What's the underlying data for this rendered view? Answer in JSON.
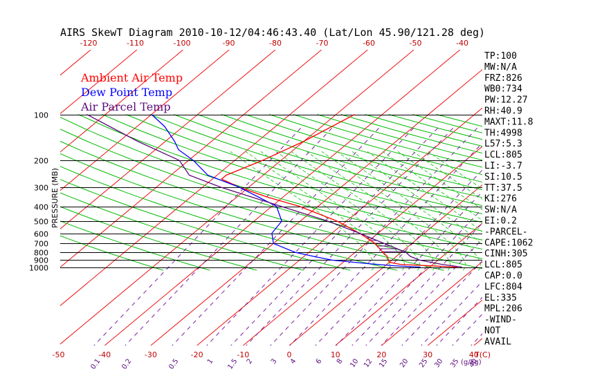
{
  "chart_data": {
    "type": "line",
    "title": "AIRS SkewT Diagram 2010-10-12/04:46:43.40 (Lat/Lon 45.90/121.28 deg)",
    "ylabel": "PRESSURE (MB)",
    "xlabel": "T(C)",
    "mixing_ratio_label": "(g/kg)",
    "pressure_ticks": [
      100,
      200,
      300,
      400,
      500,
      600,
      700,
      800,
      900,
      1000
    ],
    "top_temp_ticks": [
      -120,
      -110,
      -100,
      -90,
      -80,
      -70,
      -60,
      -50,
      -40
    ],
    "bottom_temp_ticks": [
      -50,
      -40,
      -30,
      -20,
      -10,
      0,
      10,
      20,
      30,
      40
    ],
    "mixing_ratio_ticks": [
      "0.1",
      "0.2",
      "0.5",
      "1",
      "1.5",
      "2",
      "3",
      "4",
      "6",
      "8",
      "10",
      "12",
      "15",
      "20",
      "25",
      "30",
      "35",
      "40"
    ],
    "legend": [
      {
        "name": "Ambient Air Temp",
        "color": "#ff0000"
      },
      {
        "name": "Dew Point Temp",
        "color": "#0000ff"
      },
      {
        "name": "Air Parcel Temp",
        "color": "#5a0a7a"
      }
    ],
    "series": [
      {
        "name": "Ambient Air Temp",
        "color": "#ff0000",
        "points": [
          [
            1000,
            16
          ],
          [
            960,
            3
          ],
          [
            930,
            0
          ],
          [
            850,
            -2
          ],
          [
            800,
            -4
          ],
          [
            700,
            -8
          ],
          [
            600,
            -14
          ],
          [
            500,
            -22
          ],
          [
            400,
            -34
          ],
          [
            350,
            -43
          ],
          [
            300,
            -52
          ],
          [
            265,
            -58
          ],
          [
            250,
            -58
          ],
          [
            200,
            -54
          ],
          [
            150,
            -50
          ],
          [
            100,
            -46
          ]
        ]
      },
      {
        "name": "Dew Point Temp",
        "color": "#0000ff",
        "points": [
          [
            1000,
            8
          ],
          [
            980,
            2
          ],
          [
            950,
            -4
          ],
          [
            900,
            -13
          ],
          [
            850,
            -18
          ],
          [
            800,
            -23
          ],
          [
            700,
            -30
          ],
          [
            600,
            -33
          ],
          [
            500,
            -34
          ],
          [
            400,
            -39
          ],
          [
            300,
            -52
          ],
          [
            250,
            -62
          ],
          [
            200,
            -69
          ],
          [
            170,
            -75
          ],
          [
            150,
            -78
          ],
          [
            120,
            -84
          ],
          [
            100,
            -90
          ]
        ]
      },
      {
        "name": "Air Parcel Temp",
        "color": "#5a0a7a",
        "points": [
          [
            1000,
            17
          ],
          [
            960,
            12
          ],
          [
            900,
            6
          ],
          [
            850,
            3
          ],
          [
            800,
            1
          ],
          [
            700,
            -6
          ],
          [
            600,
            -14
          ],
          [
            500,
            -24
          ],
          [
            400,
            -38
          ],
          [
            300,
            -56
          ],
          [
            250,
            -66
          ],
          [
            200,
            -72
          ],
          [
            150,
            -86
          ],
          [
            100,
            -104
          ]
        ]
      }
    ],
    "cape_shading_range_mb": [
      340,
      805
    ],
    "indices": [
      "TP:100",
      "MW:N/A",
      "FRZ:826",
      "WB0:734",
      "PW:12.27",
      "RH:40.9",
      "MAXT:11.8",
      "TH:4998",
      "L57:5.3",
      "LCL:805",
      "LI:-3.7",
      "SI:10.5",
      "TT:37.5",
      "KI:276",
      "SW:N/A",
      "EI:0.2",
      "-PARCEL-",
      "CAPE:1062",
      "CINH:305",
      "LCL:805",
      "CAP:0.0",
      "LFC:804",
      "EL:335",
      "MPL:206",
      "-WIND-",
      "NOT",
      "AVAIL"
    ]
  },
  "colors": {
    "temperature": "#ff0000",
    "dewpoint": "#0000ff",
    "parcel": "#5a0a7a",
    "isotherm": "#ee1111",
    "dry_adiabat": "#00bb00",
    "moist_adiabat": "#33cc33",
    "mixing_ratio": "#7a1fa0",
    "isobar": "#000000"
  }
}
